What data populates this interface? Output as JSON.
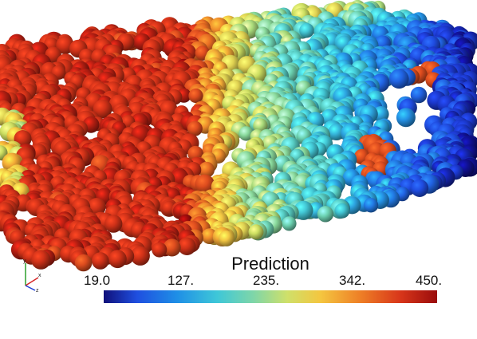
{
  "colorbar": {
    "title": "Prediction",
    "ticks": [
      "19.0",
      "127.",
      "235.",
      "342.",
      "450."
    ],
    "range": [
      19.0,
      450.0
    ],
    "colors": [
      "#00008f",
      "#0000ff",
      "#00a0ff",
      "#40ffc0",
      "#c0ff40",
      "#ffd000",
      "#ff4000",
      "#800000"
    ],
    "gradient_css": "linear-gradient(90deg, #10107a 0%, #1f4fe0 10%, #1f8fe6 22%, #3ec7d8 34%, #7fd6a8 45%, #cfe06a 55%, #f4c640 65%, #ee7f26 77%, #d8361a 89%, #9a0c0c 100%)"
  },
  "axes": {
    "x_label": "x",
    "y_label": "y",
    "z_label": "z"
  },
  "scene": {
    "description_colors": {
      "high": "#cc1a14",
      "mid": "#3fb8c8",
      "low": "#1f33d6"
    }
  }
}
